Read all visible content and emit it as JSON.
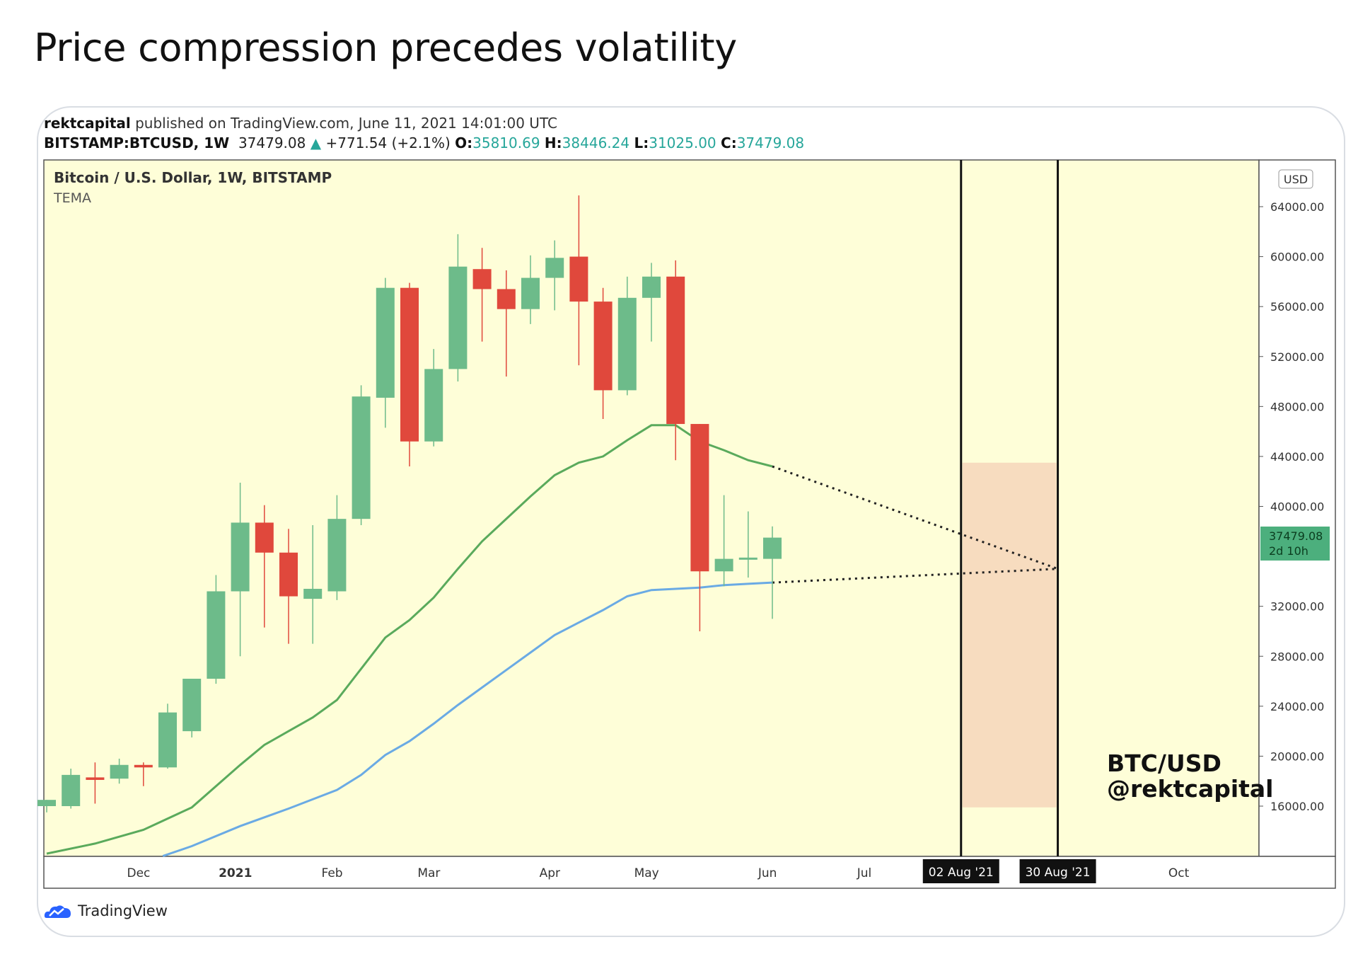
{
  "heading": "Price compression precedes volatility",
  "meta": {
    "author": "rektcapital",
    "published": "published on TradingView.com, June 11, 2021 14:01:00 UTC",
    "symbol": "BITSTAMP:BTCUSD, 1W",
    "last": "37479.08",
    "change": "+771.54 (+2.1%)",
    "o_label": "O:",
    "o": "35810.69",
    "h_label": "H:",
    "h": "38446.24",
    "l_label": "L:",
    "l": "31025.00",
    "c_label": "C:",
    "c": "37479.08"
  },
  "footer_logo": "TradingView",
  "colors": {
    "up": "#6dbb8a",
    "down": "#e0483c",
    "bg": "#fefed8",
    "tema_fast": "#5aaa5c",
    "tema_slow": "#6aaae4",
    "zone": "#f7dcbf"
  },
  "chart_data": {
    "type": "candlestick",
    "title": "Bitcoin / U.S. Dollar, 1W, BITSTAMP",
    "indicator": "TEMA",
    "currency": "USD",
    "ylim": [
      12000,
      67000
    ],
    "y_ticks": [
      "64000.00",
      "60000.00",
      "56000.00",
      "52000.00",
      "48000.00",
      "44000.00",
      "40000.00",
      "32000.00",
      "28000.00",
      "24000.00",
      "20000.00",
      "16000.00"
    ],
    "x_ticks": [
      {
        "label": "Dec",
        "week": 3.8
      },
      {
        "label": "2021",
        "week": 7.8
      },
      {
        "label": "Feb",
        "week": 11.8
      },
      {
        "label": "Mar",
        "week": 15.8
      },
      {
        "label": "Apr",
        "week": 20.8
      },
      {
        "label": "May",
        "week": 24.8
      },
      {
        "label": "Jun",
        "week": 29.8
      },
      {
        "label": "Jul",
        "week": 33.8
      },
      {
        "label": "Oct",
        "week": 46.8
      }
    ],
    "markers": [
      {
        "label": "02 Aug '21",
        "week": 37.8
      },
      {
        "label": "30 Aug '21",
        "week": 41.8
      }
    ],
    "last_price": "37479.08",
    "countdown": "2d 10h",
    "watermark": [
      "BTC/USD",
      "@rektcapital"
    ],
    "candles": [
      {
        "o": 16000,
        "h": 16500,
        "l": 15500,
        "c": 16500
      },
      {
        "o": 16000,
        "h": 19000,
        "l": 15800,
        "c": 18500
      },
      {
        "o": 18300,
        "h": 19500,
        "l": 16200,
        "c": 18100
      },
      {
        "o": 18200,
        "h": 19800,
        "l": 17800,
        "c": 19300
      },
      {
        "o": 19300,
        "h": 19500,
        "l": 17600,
        "c": 19100
      },
      {
        "o": 19100,
        "h": 24200,
        "l": 19000,
        "c": 23500
      },
      {
        "o": 22000,
        "h": 26000,
        "l": 21500,
        "c": 26200
      },
      {
        "o": 26200,
        "h": 34500,
        "l": 25800,
        "c": 33200
      },
      {
        "o": 33200,
        "h": 41900,
        "l": 28000,
        "c": 38700
      },
      {
        "o": 38700,
        "h": 40100,
        "l": 30300,
        "c": 36300
      },
      {
        "o": 36300,
        "h": 38200,
        "l": 29000,
        "c": 32800
      },
      {
        "o": 32600,
        "h": 38500,
        "l": 29000,
        "c": 33400
      },
      {
        "o": 33200,
        "h": 40900,
        "l": 32500,
        "c": 39000
      },
      {
        "o": 39000,
        "h": 49700,
        "l": 38500,
        "c": 48800
      },
      {
        "o": 48700,
        "h": 58300,
        "l": 46300,
        "c": 57500
      },
      {
        "o": 57500,
        "h": 57900,
        "l": 43200,
        "c": 45200
      },
      {
        "o": 45200,
        "h": 52600,
        "l": 44800,
        "c": 51000
      },
      {
        "o": 51000,
        "h": 61800,
        "l": 50000,
        "c": 59200
      },
      {
        "o": 59000,
        "h": 60700,
        "l": 53200,
        "c": 57400
      },
      {
        "o": 57400,
        "h": 58900,
        "l": 50400,
        "c": 55800
      },
      {
        "o": 55800,
        "h": 60100,
        "l": 54600,
        "c": 58300
      },
      {
        "o": 58300,
        "h": 61300,
        "l": 55700,
        "c": 59900
      },
      {
        "o": 60000,
        "h": 64900,
        "l": 51300,
        "c": 56400
      },
      {
        "o": 56400,
        "h": 57500,
        "l": 47000,
        "c": 49300
      },
      {
        "o": 49300,
        "h": 58400,
        "l": 48900,
        "c": 56700
      },
      {
        "o": 56700,
        "h": 59500,
        "l": 53200,
        "c": 58400
      },
      {
        "o": 58400,
        "h": 59700,
        "l": 43700,
        "c": 46600
      },
      {
        "o": 46600,
        "h": 46600,
        "l": 30000,
        "c": 34800
      },
      {
        "o": 34800,
        "h": 40900,
        "l": 33600,
        "c": 35800
      },
      {
        "o": 35800,
        "h": 39600,
        "l": 34300,
        "c": 35900
      },
      {
        "o": 35800,
        "h": 38400,
        "l": 31000,
        "c": 37500
      }
    ],
    "tema_fast": [
      [
        0,
        12200
      ],
      [
        2,
        13000
      ],
      [
        4,
        14100
      ],
      [
        6,
        15900
      ],
      [
        8,
        19300
      ],
      [
        9,
        20900
      ],
      [
        10,
        22000
      ],
      [
        11,
        23100
      ],
      [
        12,
        24500
      ],
      [
        13,
        27000
      ],
      [
        14,
        29500
      ],
      [
        15,
        30900
      ],
      [
        16,
        32700
      ],
      [
        17,
        35000
      ],
      [
        18,
        37200
      ],
      [
        19,
        39000
      ],
      [
        20,
        40800
      ],
      [
        21,
        42500
      ],
      [
        22,
        43500
      ],
      [
        23,
        44000
      ],
      [
        24,
        45300
      ],
      [
        25,
        46500
      ],
      [
        26,
        46500
      ],
      [
        27,
        45200
      ],
      [
        28,
        44500
      ],
      [
        29,
        43700
      ],
      [
        30,
        43200
      ]
    ],
    "tema_slow": [
      [
        4.8,
        12000
      ],
      [
        6,
        12800
      ],
      [
        8,
        14400
      ],
      [
        10,
        15800
      ],
      [
        12,
        17300
      ],
      [
        13,
        18500
      ],
      [
        14,
        20100
      ],
      [
        15,
        21200
      ],
      [
        16,
        22600
      ],
      [
        17,
        24100
      ],
      [
        18,
        25500
      ],
      [
        19,
        26900
      ],
      [
        20,
        28300
      ],
      [
        21,
        29700
      ],
      [
        22,
        30700
      ],
      [
        23,
        31700
      ],
      [
        24,
        32800
      ],
      [
        25,
        33300
      ],
      [
        26,
        33400
      ],
      [
        27,
        33500
      ],
      [
        28,
        33700
      ],
      [
        29,
        33800
      ],
      [
        30,
        33900
      ]
    ],
    "projection": [
      {
        "from": [
          30,
          43200
        ],
        "to": [
          41.8,
          35000
        ]
      },
      {
        "from": [
          30,
          33900
        ],
        "to": [
          41.8,
          35000
        ]
      }
    ],
    "zone": {
      "week_from": 37.8,
      "week_to": 41.8,
      "price_from": 15900,
      "price_to": 43500
    }
  }
}
